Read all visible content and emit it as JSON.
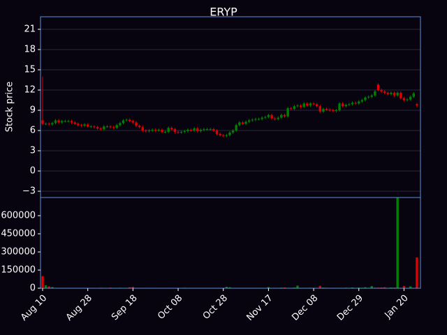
{
  "chart_data": {
    "type": "candlestick",
    "title": "ERYP",
    "ylabel": "Stock price",
    "up_color": "#008000",
    "down_color": "#e00000",
    "grid": true,
    "categories": [
      "Aug 10",
      null,
      null,
      null,
      null,
      null,
      null,
      null,
      null,
      null,
      null,
      null,
      null,
      null,
      "Aug 28",
      null,
      null,
      null,
      null,
      null,
      null,
      null,
      null,
      null,
      null,
      null,
      null,
      null,
      "Sep 18",
      null,
      null,
      null,
      null,
      null,
      null,
      null,
      null,
      null,
      null,
      null,
      null,
      null,
      "Oct 08",
      null,
      null,
      null,
      null,
      null,
      null,
      null,
      null,
      null,
      null,
      null,
      null,
      null,
      "Oct 28",
      null,
      null,
      null,
      null,
      null,
      null,
      null,
      null,
      null,
      null,
      null,
      null,
      null,
      "Nov 17",
      null,
      null,
      null,
      null,
      null,
      null,
      null,
      null,
      null,
      null,
      null,
      null,
      null,
      "Dec 08",
      null,
      null,
      null,
      null,
      null,
      null,
      null,
      null,
      null,
      null,
      null,
      null,
      null,
      "Dec 29",
      null,
      null,
      null,
      null,
      null,
      null,
      null,
      null,
      null,
      null,
      null,
      null,
      null,
      "Jan 20",
      null,
      null,
      null,
      null
    ],
    "open": [
      7.5,
      7.0,
      7.0,
      6.9,
      7.1,
      7.5,
      7.2,
      7.4,
      7.4,
      7.4,
      7.2,
      7.0,
      6.8,
      6.7,
      6.9,
      6.6,
      6.6,
      6.5,
      6.3,
      6.2,
      6.6,
      6.6,
      6.5,
      6.4,
      6.8,
      7.1,
      7.5,
      7.6,
      7.4,
      7.2,
      6.7,
      6.5,
      6.0,
      5.9,
      6.0,
      6.1,
      6.0,
      6.1,
      5.8,
      5.8,
      6.4,
      6.2,
      5.8,
      5.7,
      5.8,
      5.9,
      6.1,
      6.0,
      6.3,
      5.9,
      6.1,
      6.2,
      6.2,
      6.2,
      6.0,
      5.5,
      5.3,
      5.2,
      5.3,
      5.7,
      6.0,
      6.8,
      7.2,
      7.0,
      7.3,
      7.5,
      7.6,
      7.7,
      7.7,
      7.9,
      8.0,
      8.3,
      7.8,
      7.7,
      7.9,
      8.3,
      8.1,
      9.3,
      9.2,
      9.6,
      9.7,
      9.5,
      10.0,
      9.7,
      10.0,
      9.9,
      9.6,
      8.8,
      9.2,
      9.1,
      9.0,
      8.9,
      9.0,
      10.0,
      9.6,
      9.8,
      9.9,
      10.1,
      10.0,
      10.3,
      10.5,
      10.9,
      11.0,
      11.2,
      12.8,
      12.0,
      11.8,
      11.6,
      11.4,
      11.6,
      11.2,
      11.6,
      10.8,
      10.5,
      10.6,
      11.0,
      9.9
    ],
    "high": [
      14.0,
      7.2,
      7.2,
      7.3,
      7.7,
      7.7,
      7.6,
      7.6,
      7.6,
      7.6,
      7.4,
      7.2,
      7.0,
      7.1,
      7.1,
      6.8,
      6.8,
      6.7,
      6.5,
      6.8,
      6.8,
      6.8,
      6.7,
      7.0,
      7.3,
      7.7,
      7.8,
      7.8,
      7.6,
      7.4,
      6.9,
      6.7,
      6.2,
      6.2,
      6.3,
      6.3,
      6.3,
      6.3,
      6.0,
      6.6,
      6.6,
      6.4,
      6.0,
      6.0,
      6.1,
      6.3,
      6.3,
      6.5,
      6.5,
      6.3,
      6.4,
      6.4,
      6.4,
      6.4,
      6.2,
      5.7,
      5.5,
      5.5,
      5.9,
      6.2,
      7.0,
      7.4,
      7.4,
      7.5,
      7.7,
      7.8,
      7.9,
      7.9,
      8.1,
      8.2,
      8.5,
      8.5,
      8.0,
      8.1,
      8.5,
      8.5,
      9.5,
      9.5,
      9.8,
      9.9,
      9.9,
      10.2,
      10.2,
      10.2,
      10.2,
      10.1,
      9.8,
      9.4,
      9.4,
      9.3,
      9.2,
      9.2,
      10.2,
      10.2,
      10.0,
      10.1,
      10.3,
      10.3,
      10.5,
      10.7,
      11.1,
      11.2,
      11.4,
      12.0,
      13.0,
      12.2,
      12.0,
      11.8,
      11.8,
      11.8,
      11.8,
      11.8,
      11.0,
      10.8,
      11.2,
      11.7,
      10.1
    ],
    "low": [
      6.8,
      6.8,
      6.7,
      6.7,
      6.9,
      7.0,
      7.0,
      7.2,
      7.2,
      7.0,
      6.8,
      6.6,
      6.5,
      6.5,
      6.4,
      6.4,
      6.3,
      6.1,
      6.0,
      6.0,
      6.4,
      6.3,
      6.2,
      6.2,
      6.6,
      6.9,
      7.3,
      7.2,
      7.0,
      6.5,
      6.3,
      5.8,
      5.7,
      5.7,
      5.8,
      5.8,
      5.8,
      5.6,
      5.6,
      5.6,
      6.0,
      5.6,
      5.5,
      5.5,
      5.6,
      5.7,
      5.8,
      5.8,
      5.7,
      5.7,
      5.9,
      6.0,
      6.0,
      5.8,
      5.3,
      5.1,
      5.0,
      5.0,
      5.1,
      5.5,
      5.8,
      6.6,
      6.8,
      6.8,
      7.1,
      7.3,
      7.4,
      7.5,
      7.5,
      7.7,
      7.8,
      7.6,
      7.5,
      7.5,
      7.7,
      7.9,
      7.9,
      9.0,
      9.0,
      9.4,
      9.3,
      9.3,
      9.5,
      9.5,
      9.7,
      9.4,
      8.6,
      8.6,
      8.9,
      8.8,
      8.7,
      8.7,
      8.8,
      9.4,
      9.4,
      9.6,
      9.7,
      9.8,
      9.8,
      10.1,
      10.3,
      10.7,
      10.8,
      11.0,
      11.8,
      11.6,
      11.4,
      11.2,
      11.2,
      11.0,
      11.0,
      10.6,
      10.3,
      10.3,
      10.4,
      10.8,
      9.5
    ],
    "close": [
      7.0,
      7.0,
      6.9,
      7.1,
      7.5,
      7.2,
      7.4,
      7.4,
      7.4,
      7.2,
      7.0,
      6.8,
      6.7,
      6.9,
      6.6,
      6.6,
      6.5,
      6.3,
      6.2,
      6.6,
      6.6,
      6.5,
      6.4,
      6.8,
      7.1,
      7.5,
      7.6,
      7.4,
      7.2,
      6.7,
      6.5,
      6.0,
      5.9,
      6.0,
      6.1,
      6.0,
      6.1,
      5.8,
      5.8,
      6.4,
      6.2,
      5.8,
      5.7,
      5.8,
      5.9,
      6.1,
      6.0,
      6.3,
      5.9,
      6.1,
      6.2,
      6.2,
      6.2,
      6.0,
      5.5,
      5.3,
      5.2,
      5.3,
      5.7,
      6.0,
      6.8,
      7.2,
      7.0,
      7.3,
      7.5,
      7.6,
      7.7,
      7.7,
      7.9,
      8.0,
      8.3,
      7.8,
      7.7,
      7.9,
      8.3,
      8.1,
      9.3,
      9.2,
      9.6,
      9.7,
      9.5,
      10.0,
      9.7,
      10.0,
      9.9,
      9.6,
      8.8,
      9.2,
      9.1,
      9.0,
      8.9,
      9.0,
      10.0,
      9.6,
      9.8,
      9.9,
      10.1,
      10.0,
      10.3,
      10.5,
      10.9,
      11.0,
      11.2,
      11.8,
      12.0,
      11.8,
      11.6,
      11.4,
      11.6,
      11.2,
      11.6,
      10.8,
      10.5,
      10.6,
      11.0,
      11.5,
      9.7
    ],
    "volume": [
      100000,
      25000,
      15000,
      10000,
      3000,
      3000,
      3000,
      2000,
      2000,
      2000,
      2000,
      2000,
      2000,
      3000,
      2000,
      2000,
      2000,
      2000,
      4000,
      3000,
      3000,
      5000,
      3000,
      3000,
      4000,
      3000,
      3000,
      8000,
      12000,
      3000,
      2000,
      3000,
      2000,
      2000,
      2000,
      2000,
      2000,
      3000,
      2000,
      2000,
      3000,
      2000,
      2000,
      2000,
      4000,
      2000,
      2000,
      3000,
      2000,
      2000,
      2000,
      2000,
      3000,
      2000,
      2000,
      2000,
      2000,
      12000,
      8000,
      3000,
      2000,
      3000,
      2000,
      2000,
      3000,
      2000,
      2000,
      3000,
      2000,
      3000,
      10000,
      3000,
      2000,
      3000,
      5000,
      6000,
      3000,
      3000,
      5000,
      22000,
      3000,
      2000,
      3000,
      4000,
      3000,
      3000,
      20000,
      5000,
      4000,
      3000,
      2000,
      3000,
      2000,
      3000,
      4000,
      3000,
      6000,
      3000,
      5000,
      4000,
      8000,
      3000,
      18000,
      4000,
      5000,
      6000,
      8000,
      3000,
      6000,
      5000,
      760000,
      3000,
      18000,
      3000,
      15000,
      2000,
      255000
    ],
    "ylim": [
      -3.93,
      22.86
    ],
    "yticks": [
      {
        "value": -3,
        "label": "−3"
      },
      0,
      3,
      6,
      9,
      12,
      15,
      18,
      21
    ],
    "volume_ylim": [
      0,
      750000
    ],
    "volume_yticks": [
      0,
      150000,
      300000,
      450000,
      600000
    ]
  }
}
